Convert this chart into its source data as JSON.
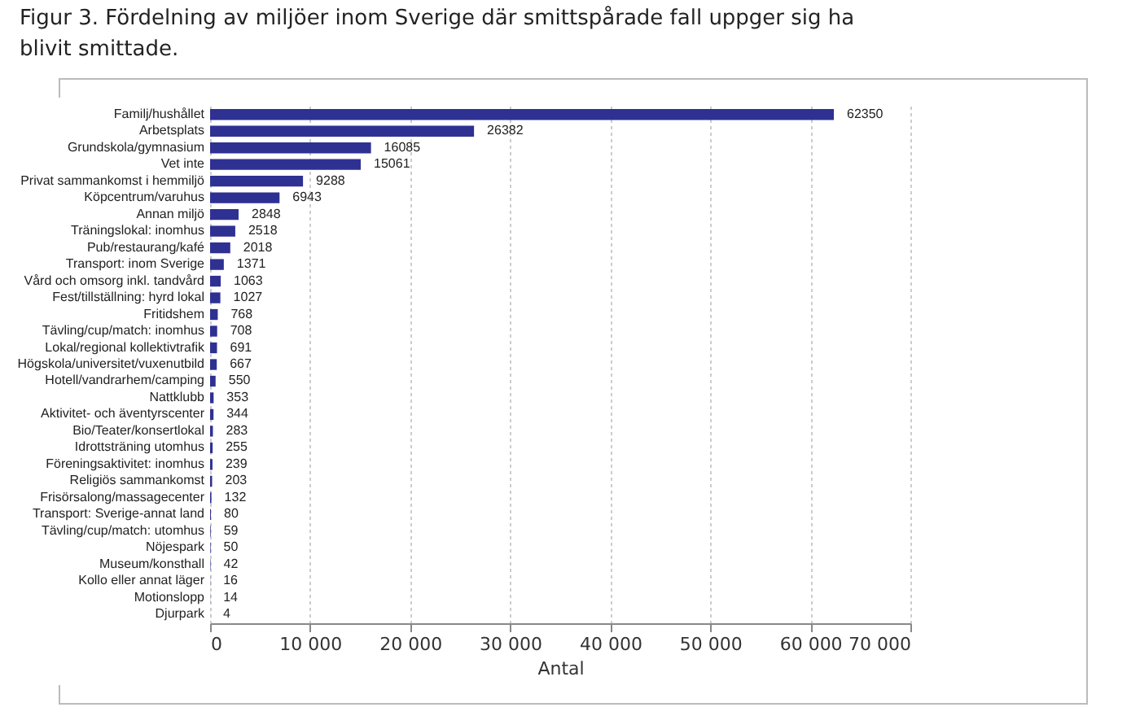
{
  "chart_data": {
    "type": "bar",
    "orientation": "horizontal",
    "title": "Figur 3. Fördelning av miljöer inom Sverige där smittspårade fall uppger sig ha blivit smittade.",
    "xlabel": "Antal",
    "categories": [
      "Familj/hushållet",
      "Arbetsplats",
      "Grundskola/gymnasium",
      "Vet inte",
      "Privat sammankomst i hemmiljö",
      "Köpcentrum/varuhus",
      "Annan miljö",
      "Träningslokal: inomhus",
      "Pub/restaurang/kafé",
      "Transport: inom Sverige",
      "Vård och omsorg inkl. tandvård",
      "Fest/tillställning: hyrd lokal",
      "Fritidshem",
      "Tävling/cup/match: inomhus",
      "Lokal/regional kollektivtrafik",
      "Högskola/universitet/vuxenutbild",
      "Hotell/vandrarhem/camping",
      "Nattklubb",
      "Aktivitet- och äventyrscenter",
      "Bio/Teater/konsertlokal",
      "Idrottsträning utomhus",
      "Föreningsaktivitet: inomhus",
      "Religiös sammankomst",
      "Frisörsalong/massagecenter",
      "Transport: Sverige-annat land",
      "Tävling/cup/match: utomhus",
      "Nöjespark",
      "Museum/konsthall",
      "Kollo eller annat läger",
      "Motionslopp",
      "Djurpark"
    ],
    "values": [
      62350,
      26382,
      16085,
      15061,
      9288,
      6943,
      2848,
      2518,
      2018,
      1371,
      1063,
      1027,
      768,
      708,
      691,
      667,
      550,
      353,
      344,
      283,
      255,
      239,
      203,
      132,
      80,
      59,
      50,
      42,
      16,
      14,
      4
    ],
    "color": "#2e3192",
    "data_labels": true,
    "grid": "x",
    "xlim": [
      0,
      70000
    ],
    "xticks": [
      0,
      {
        "value": 10000,
        "label": "10 000"
      },
      {
        "value": 20000,
        "label": "20 000"
      },
      {
        "value": 30000,
        "label": "30 000"
      },
      {
        "value": 40000,
        "label": "40 000"
      },
      {
        "value": 50000,
        "label": "50 000"
      },
      {
        "value": 60000,
        "label": "60 000"
      },
      {
        "value": 70000,
        "label": "70 000"
      }
    ]
  }
}
